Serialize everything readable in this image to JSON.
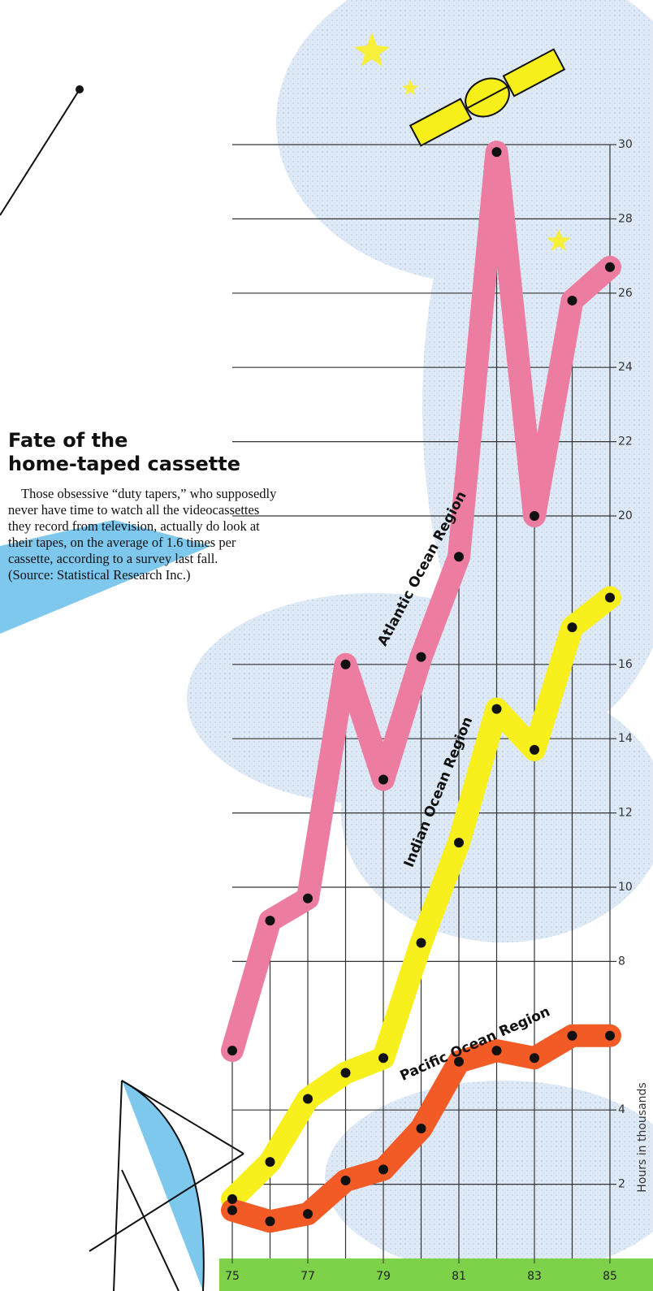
{
  "chart_data": {
    "type": "line",
    "title": [
      "Fate of the",
      "home-taped cassette"
    ],
    "body": [
      "Those obsessive “duty tapers,” who supposedly",
      "never have time to watch all the videocassettes",
      "they record from television, actually do look at",
      "their tapes, on the average of 1.6 times per",
      "cassette, according to a survey last fall.",
      "(Source: Statistical Research Inc.)"
    ],
    "y_label": "Hours in thousands",
    "x": [
      75,
      76,
      77,
      78,
      79,
      80,
      81,
      82,
      83,
      84,
      85
    ],
    "xlim": [
      75,
      85
    ],
    "xticks": [
      75,
      77,
      79,
      81,
      83,
      85
    ],
    "ylim": [
      0,
      30
    ],
    "yticks": [
      2,
      4,
      8,
      10,
      12,
      14,
      16,
      20,
      22,
      24,
      26,
      28,
      30
    ],
    "grid": true,
    "series": [
      {
        "name": "Atlantic Ocean Region",
        "color": "#ec7ca0",
        "values": [
          5.6,
          9.1,
          9.7,
          16.0,
          12.9,
          16.2,
          18.9,
          29.8,
          20.0,
          25.8,
          26.7
        ]
      },
      {
        "name": "Indian Ocean Region",
        "color": "#f8f01c",
        "values": [
          1.6,
          2.6,
          4.3,
          5.0,
          5.4,
          8.5,
          11.2,
          14.8,
          13.7,
          17.0,
          17.8
        ]
      },
      {
        "name": "Pacific Ocean Region",
        "color": "#f25a26",
        "values": [
          1.3,
          1.0,
          1.2,
          2.1,
          2.4,
          3.5,
          5.3,
          5.6,
          5.4,
          6.0,
          6.0
        ]
      }
    ]
  }
}
